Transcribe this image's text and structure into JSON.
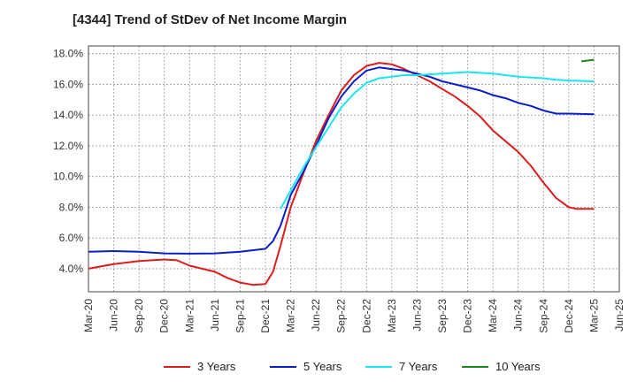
{
  "chart_data": {
    "type": "line",
    "title": "[4344]  Trend of StDev of Net Income Margin",
    "xlabel": "",
    "ylabel": "",
    "x_ticks": [
      "Mar-20",
      "Jun-20",
      "Sep-20",
      "Dec-20",
      "Mar-21",
      "Jun-21",
      "Sep-21",
      "Dec-21",
      "Mar-22",
      "Jun-22",
      "Sep-22",
      "Dec-22",
      "Mar-23",
      "Jun-23",
      "Sep-23",
      "Dec-23",
      "Mar-24",
      "Jun-24",
      "Sep-24",
      "Dec-24",
      "Mar-25",
      "Jun-25"
    ],
    "y_ticks": [
      "4.0%",
      "6.0%",
      "8.0%",
      "10.0%",
      "12.0%",
      "14.0%",
      "16.0%",
      "18.0%"
    ],
    "ylim": [
      2.5,
      18.5
    ],
    "grid": true,
    "legend_position": "bottom",
    "series": [
      {
        "name": "3 Years",
        "color": "#dd1c1c",
        "points": [
          [
            0,
            4.0
          ],
          [
            1,
            4.3
          ],
          [
            2,
            4.5
          ],
          [
            3,
            4.6
          ],
          [
            3.5,
            4.55
          ],
          [
            4,
            4.2
          ],
          [
            5,
            3.8
          ],
          [
            5.5,
            3.4
          ],
          [
            6,
            3.1
          ],
          [
            6.5,
            2.95
          ],
          [
            7,
            3.0
          ],
          [
            7.3,
            3.8
          ],
          [
            7.6,
            5.5
          ],
          [
            8,
            8.0
          ],
          [
            8.5,
            10.2
          ],
          [
            9,
            12.3
          ],
          [
            9.5,
            14.0
          ],
          [
            10,
            15.6
          ],
          [
            10.5,
            16.6
          ],
          [
            11,
            17.2
          ],
          [
            11.5,
            17.4
          ],
          [
            12,
            17.3
          ],
          [
            12.5,
            17.0
          ],
          [
            13,
            16.6
          ],
          [
            13.5,
            16.2
          ],
          [
            14,
            15.7
          ],
          [
            14.5,
            15.2
          ],
          [
            15,
            14.6
          ],
          [
            15.5,
            13.9
          ],
          [
            16,
            13.0
          ],
          [
            16.5,
            12.3
          ],
          [
            17,
            11.6
          ],
          [
            17.5,
            10.7
          ],
          [
            18,
            9.6
          ],
          [
            18.5,
            8.6
          ],
          [
            19,
            8.0
          ],
          [
            19.3,
            7.9
          ],
          [
            20,
            7.9
          ]
        ]
      },
      {
        "name": "5 Years",
        "color": "#0a1ec8",
        "points": [
          [
            0,
            5.1
          ],
          [
            1,
            5.15
          ],
          [
            2,
            5.1
          ],
          [
            3,
            5.0
          ],
          [
            4,
            4.98
          ],
          [
            5,
            5.0
          ],
          [
            6,
            5.1
          ],
          [
            7,
            5.3
          ],
          [
            7.3,
            5.8
          ],
          [
            7.6,
            6.8
          ],
          [
            8,
            8.8
          ],
          [
            8.5,
            10.3
          ],
          [
            9,
            12.0
          ],
          [
            9.5,
            13.8
          ],
          [
            10,
            15.2
          ],
          [
            10.5,
            16.2
          ],
          [
            11,
            16.9
          ],
          [
            11.5,
            17.1
          ],
          [
            12,
            17.0
          ],
          [
            12.5,
            16.9
          ],
          [
            13,
            16.7
          ],
          [
            13.5,
            16.5
          ],
          [
            14,
            16.2
          ],
          [
            14.5,
            16.0
          ],
          [
            15,
            15.8
          ],
          [
            15.5,
            15.6
          ],
          [
            16,
            15.3
          ],
          [
            16.5,
            15.1
          ],
          [
            17,
            14.8
          ],
          [
            17.5,
            14.6
          ],
          [
            18,
            14.3
          ],
          [
            18.5,
            14.1
          ],
          [
            19,
            14.1
          ],
          [
            20,
            14.05
          ]
        ]
      },
      {
        "name": "7 Years",
        "color": "#19e6f0",
        "points": [
          [
            7.6,
            7.9
          ],
          [
            8,
            9.1
          ],
          [
            8.5,
            10.6
          ],
          [
            9,
            11.9
          ],
          [
            9.5,
            13.2
          ],
          [
            10,
            14.5
          ],
          [
            10.5,
            15.4
          ],
          [
            11,
            16.1
          ],
          [
            11.5,
            16.4
          ],
          [
            12,
            16.5
          ],
          [
            12.5,
            16.6
          ],
          [
            13,
            16.6
          ],
          [
            13.5,
            16.65
          ],
          [
            14,
            16.7
          ],
          [
            14.5,
            16.75
          ],
          [
            15,
            16.8
          ],
          [
            15.5,
            16.75
          ],
          [
            16,
            16.7
          ],
          [
            16.5,
            16.6
          ],
          [
            17,
            16.5
          ],
          [
            17.5,
            16.45
          ],
          [
            18,
            16.4
          ],
          [
            18.5,
            16.3
          ],
          [
            19,
            16.25
          ],
          [
            20,
            16.2
          ]
        ]
      },
      {
        "name": "10 Years",
        "color": "#1a8a1a",
        "points": [
          [
            19.5,
            17.5
          ],
          [
            20,
            17.6
          ]
        ]
      }
    ]
  },
  "colors": {
    "grid": "#9a9a9a",
    "axis": "#444444",
    "background": "#ffffff"
  }
}
